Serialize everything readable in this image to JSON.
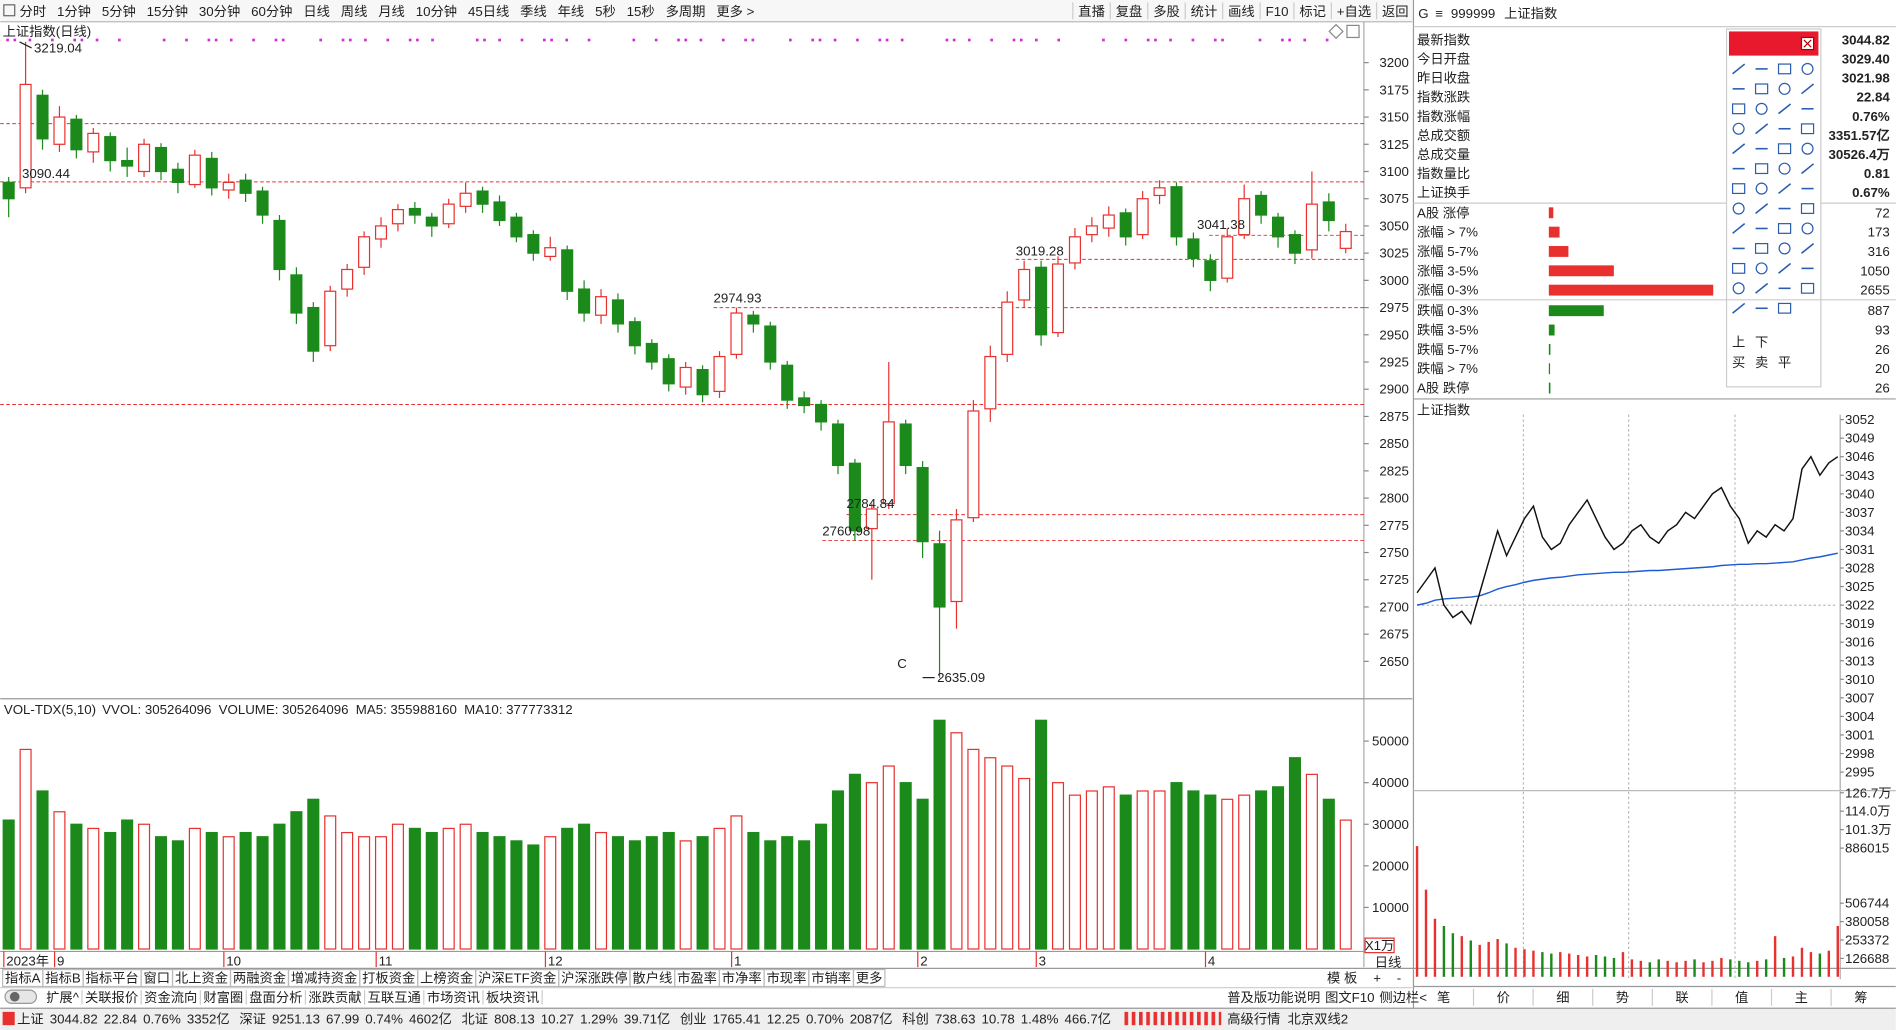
{
  "toolbar": {
    "periods": [
      "分时",
      "1分钟",
      "5分钟",
      "15分钟",
      "30分钟",
      "60分钟",
      "日线",
      "周线",
      "月线",
      "10分钟",
      "45日线",
      "季线",
      "年线",
      "5秒",
      "15秒",
      "多周期",
      "更多 >"
    ],
    "active": 6,
    "actions": [
      "直播",
      "复盘",
      "多股",
      "统计",
      "画线",
      "F10",
      "标记",
      "+自选",
      "返回"
    ]
  },
  "chart_data": {
    "type": "candlestick",
    "title": "上证指数(日线)",
    "categories": [
      "2023年",
      null,
      null,
      "9",
      null,
      null,
      null,
      null,
      null,
      null,
      null,
      null,
      null,
      "10",
      null,
      null,
      null,
      null,
      null,
      null,
      null,
      null,
      "11",
      null,
      null,
      null,
      null,
      null,
      null,
      null,
      null,
      null,
      "12",
      null,
      null,
      null,
      null,
      null,
      null,
      null,
      null,
      null,
      null,
      "1",
      null,
      null,
      null,
      null,
      null,
      null,
      null,
      null,
      null,
      null,
      "2",
      null,
      null,
      null,
      null,
      null,
      null,
      "3",
      null,
      null,
      null,
      null,
      null,
      null,
      null,
      null,
      null,
      "4",
      null,
      null,
      null,
      null,
      null,
      null,
      null,
      null
    ],
    "open": [
      3090,
      3085,
      3170,
      3125,
      3148,
      3118,
      3132,
      3110,
      3100,
      3122,
      3102,
      3088,
      3112,
      3083,
      3092,
      3082,
      3055,
      3005,
      2975,
      2940,
      2992,
      3012,
      3038,
      3052,
      3066,
      3058,
      3052,
      3068,
      3082,
      3072,
      3058,
      3042,
      3022,
      3028,
      2992,
      2968,
      2982,
      2962,
      2942,
      2928,
      2902,
      2918,
      2898,
      2932,
      2968,
      2958,
      2922,
      2892,
      2886,
      2868,
      2832,
      2772,
      2795,
      2868,
      2828,
      2758,
      2705,
      2782,
      2882,
      2932,
      2982,
      3012,
      2952,
      3016,
      3042,
      3048,
      3062,
      3042,
      3078,
      3086,
      3038,
      3018,
      3002,
      3042,
      3078,
      3058,
      3042,
      3028,
      3072,
      3029.4
    ],
    "high": [
      3095,
      3219.04,
      3175,
      3160,
      3152,
      3140,
      3136,
      3122,
      3130,
      3126,
      3108,
      3120,
      3118,
      3098,
      3098,
      3086,
      3060,
      3012,
      2980,
      2995,
      3015,
      3045,
      3058,
      3070,
      3072,
      3062,
      3075,
      3090,
      3086,
      3078,
      3062,
      3046,
      3040,
      3032,
      3000,
      2992,
      2988,
      2966,
      2946,
      2932,
      2925,
      2922,
      2935,
      2974.93,
      2972,
      2962,
      2926,
      2898,
      2890,
      2872,
      2836,
      2795,
      2925,
      2872,
      2834,
      2770,
      2790,
      2890,
      2940,
      2990,
      3018,
      3018,
      3022,
      3048,
      3058,
      3068,
      3066,
      3082,
      3092,
      3090,
      3044,
      3024,
      3048,
      3088,
      3082,
      3062,
      3046,
      3100,
      3080,
      3052
    ],
    "low": [
      3058,
      3080,
      3120,
      3118,
      3112,
      3108,
      3100,
      3095,
      3095,
      3092,
      3080,
      3085,
      3078,
      3075,
      3072,
      3052,
      3000,
      2960,
      2925,
      2935,
      2985,
      3005,
      3030,
      3045,
      3052,
      3040,
      3048,
      3062,
      3062,
      3050,
      3035,
      3018,
      3018,
      2982,
      2962,
      2960,
      2952,
      2932,
      2918,
      2898,
      2895,
      2888,
      2892,
      2928,
      2952,
      2918,
      2882,
      2878,
      2862,
      2822,
      2760.98,
      2725,
      2790,
      2822,
      2745,
      2635.09,
      2680,
      2778,
      2870,
      2925,
      2975,
      2940,
      2948,
      3010,
      3035,
      3040,
      3032,
      3038,
      3070,
      3032,
      3012,
      2990,
      2998,
      3038,
      3052,
      3030,
      3015,
      3020,
      3045,
      3025
    ],
    "close": [
      3075,
      3180,
      3130,
      3150,
      3120,
      3135,
      3110,
      3105,
      3125,
      3100,
      3090,
      3115,
      3085,
      3090,
      3080,
      3060,
      3010,
      2970,
      2935,
      2990,
      3010,
      3040,
      3050,
      3065,
      3060,
      3050,
      3070,
      3080,
      3070,
      3055,
      3040,
      3025,
      3030,
      2990,
      2970,
      2985,
      2960,
      2940,
      2925,
      2905,
      2920,
      2895,
      2930,
      2970,
      2960,
      2925,
      2890,
      2885,
      2870,
      2830,
      2770,
      2790,
      2870,
      2830,
      2760,
      2700,
      2780,
      2880,
      2930,
      2980,
      3010,
      2950,
      3015,
      3040,
      3050,
      3060,
      3040,
      3075,
      3085,
      3040,
      3020,
      3000,
      3040,
      3075,
      3060,
      3040,
      3025,
      3070,
      3055,
      3044.82
    ],
    "up_color": "#e8312f",
    "down_color": "#1b8a1b",
    "ylim": [
      2619,
      3222
    ],
    "yticks": [
      2650,
      2675,
      2700,
      2725,
      2750,
      2775,
      2800,
      2825,
      2850,
      2875,
      2900,
      2925,
      2950,
      2975,
      3000,
      3025,
      3050,
      3075,
      3100,
      3125,
      3150,
      3175,
      3200
    ],
    "level_lines": [
      3144,
      3090.44,
      3041.38,
      3019.28,
      2974.93,
      2886,
      2784.84,
      2760.98
    ],
    "price_labels": [
      3219.04,
      3090.44,
      3041.38,
      3019.28,
      2974.93,
      2784.84,
      2760.98,
      2635.09
    ],
    "wave_label": "C",
    "volume": {
      "indicator": "VOL-TDX(5,10)",
      "items": [
        {
          "name": "VVOL:",
          "value": 305264096,
          "color": "#222"
        },
        {
          "name": "VOLUME:",
          "value": 305264096,
          "color": "#1e6fd6"
        },
        {
          "name": "MA5:",
          "value": 355988160,
          "color": "#c1208f"
        },
        {
          "name": "MA10:",
          "value": 377773312,
          "color": "#8b1aa8"
        }
      ],
      "values": [
        31000,
        48000,
        38000,
        33000,
        30000,
        29000,
        28000,
        31000,
        30000,
        27000,
        26000,
        29000,
        28000,
        27000,
        28000,
        27000,
        30000,
        33000,
        36000,
        32000,
        28000,
        27000,
        27000,
        30000,
        29000,
        28000,
        29000,
        30000,
        28000,
        27000,
        26000,
        25000,
        27000,
        29000,
        30000,
        28000,
        27000,
        26000,
        27000,
        28000,
        26000,
        27000,
        29000,
        32000,
        28000,
        26000,
        27000,
        26000,
        30000,
        38000,
        42000,
        40000,
        44000,
        40000,
        36000,
        55000,
        52000,
        48000,
        46000,
        44000,
        41000,
        55000,
        40000,
        37000,
        38000,
        39000,
        37000,
        38000,
        38000,
        40000,
        38000,
        37000,
        36000,
        37000,
        38000,
        39000,
        46000,
        42000,
        36000,
        31000
      ],
      "ylim": [
        0,
        59600
      ],
      "yticks": [
        10000,
        20000,
        30000,
        40000,
        50000
      ],
      "unit": "X1万"
    }
  },
  "period_label": "日线",
  "side_controls": {
    "template": "模 板",
    "zoom": [
      "+",
      "-"
    ]
  },
  "quote": {
    "logo": "G",
    "menu": "≡",
    "code": "999999",
    "name": "上证指数",
    "rows": [
      {
        "label": "最新指数",
        "value": "3044.82",
        "color": "#e8312f"
      },
      {
        "label": "今日开盘",
        "value": "3029.40",
        "color": "#e8312f"
      },
      {
        "label": "昨日收盘",
        "value": "3021.98",
        "color": "#222"
      },
      {
        "label": "指数涨跌",
        "value": "22.84",
        "color": "#e8312f"
      },
      {
        "label": "指数涨幅",
        "value": "0.76%",
        "color": "#e8312f"
      },
      {
        "label": "总成交额",
        "value": "3351.57亿",
        "color": "#222"
      },
      {
        "label": "总成交量",
        "value": "30526.4万",
        "color": "#222"
      },
      {
        "label": "指数量比",
        "value": "0.81",
        "color": "#e8312f"
      },
      {
        "label": "上证换手",
        "value": "0.67%",
        "color": "#222"
      }
    ]
  },
  "tools": {
    "row1": [
      "上",
      "下"
    ],
    "row2": [
      "买",
      "卖",
      "平"
    ]
  },
  "breadth": {
    "rows": [
      {
        "label": "A股 涨停",
        "value": 72,
        "color": "#e8312f"
      },
      {
        "label": "涨幅 > 7%",
        "value": 173,
        "color": "#e8312f"
      },
      {
        "label": "涨幅 5-7%",
        "value": 316,
        "color": "#e8312f"
      },
      {
        "label": "涨幅 3-5%",
        "value": 1050,
        "color": "#e8312f"
      },
      {
        "label": "涨幅 0-3%",
        "value": 2655,
        "color": "#e8312f"
      },
      {
        "label": "跌幅 0-3%",
        "value": 887,
        "color": "#1b8a1b"
      },
      {
        "label": "跌幅 3-5%",
        "value": 93,
        "color": "#1b8a1b"
      },
      {
        "label": "跌幅 5-7%",
        "value": 26,
        "color": "#1b8a1b"
      },
      {
        "label": "跌幅 > 7%",
        "value": 20,
        "color": "#1b8a1b"
      },
      {
        "label": "A股 跌停",
        "value": 26,
        "color": "#1b8a1b"
      }
    ]
  },
  "intraday": {
    "title": "上证指数",
    "base": 3021.98,
    "price": [
      3024,
      3026,
      3028,
      3022,
      3020,
      3021,
      3019,
      3024,
      3029,
      3034,
      3030,
      3033,
      3036,
      3038,
      3033,
      3031,
      3032,
      3035,
      3037,
      3039,
      3036,
      3033,
      3031,
      3032,
      3034,
      3035,
      3033,
      3032,
      3034,
      3035,
      3037,
      3036,
      3038,
      3040,
      3041,
      3038,
      3036,
      3032,
      3034,
      3033,
      3035,
      3034,
      3036,
      3044,
      3046,
      3043,
      3045,
      3046
    ],
    "avg": [
      3022,
      3022.3,
      3022.8,
      3023,
      3023.1,
      3023.2,
      3023.3,
      3023.5,
      3024,
      3024.6,
      3025,
      3025.3,
      3025.7,
      3026,
      3026.2,
      3026.4,
      3026.5,
      3026.7,
      3026.9,
      3027,
      3027.1,
      3027.2,
      3027.3,
      3027.3,
      3027.4,
      3027.5,
      3027.6,
      3027.6,
      3027.7,
      3027.8,
      3027.9,
      3028,
      3028.1,
      3028.2,
      3028.4,
      3028.5,
      3028.6,
      3028.6,
      3028.7,
      3028.7,
      3028.8,
      3028.9,
      3029,
      3029.3,
      3029.6,
      3029.8,
      3030.1,
      3030.4
    ],
    "price_color": "#111",
    "avg_color": "#1e5bd6",
    "ylim": [
      2991.8,
      3052.8
    ],
    "yticks": [
      2995,
      2998,
      3001,
      3004,
      3007,
      3010,
      3013,
      3016,
      3019,
      3022,
      3025,
      3028,
      3031,
      3034,
      3037,
      3040,
      3043,
      3046,
      3049,
      3052
    ],
    "volume": [
      900000,
      600000,
      400000,
      350000,
      300000,
      280000,
      250000,
      220000,
      240000,
      260000,
      230000,
      200000,
      190000,
      180000,
      170000,
      160000,
      170000,
      160000,
      150000,
      140000,
      150000,
      140000,
      130000,
      170000,
      120000,
      110000,
      100000,
      120000,
      110000,
      100000,
      110000,
      120000,
      100000,
      110000,
      130000,
      120000,
      110000,
      100000,
      110000,
      120000,
      280000,
      130000,
      140000,
      200000,
      170000,
      160000,
      180000,
      350000
    ],
    "vol_ylim": [
      0,
      1290000
    ],
    "vol_yticks": [
      126688,
      253372,
      380058,
      506744,
      886015,
      {
        "value": 1013000,
        "label": "101.3万"
      },
      {
        "value": 1140000,
        "label": "114.0万"
      },
      {
        "value": 1267000,
        "label": "126.7万"
      }
    ],
    "tabs": [
      "笔",
      "价",
      "细",
      "势",
      "联",
      "值",
      "主",
      "筹"
    ],
    "active": 3
  },
  "bottom": {
    "row1": [
      "指标A",
      "指标B",
      "指标平台",
      "窗口",
      "北上资金",
      "两融资金",
      "增减持资金",
      "打板资金",
      "上榜资金",
      "沪深ETF资金",
      "沪深涨跌停",
      "散户线",
      "市盈率",
      "市净率",
      "市现率",
      "市销率",
      "更多"
    ],
    "row1_red": [
      16
    ],
    "row2": [
      "扩展^",
      "关联报价",
      "资金流向",
      "财富圈",
      "盘面分析",
      "涨跌贡献",
      "互联互通",
      "市场资讯",
      "板块资讯"
    ],
    "row2_red": [
      3,
      5,
      6
    ],
    "row2_right": [
      "普及版功能说明",
      "图文F10",
      "侧边栏<"
    ]
  },
  "status": {
    "indices": [
      {
        "name": "上证",
        "price": "3044.82",
        "change": "22.84",
        "pct": "0.76%",
        "amount": "3352亿"
      },
      {
        "name": "深证",
        "price": "9251.13",
        "change": "67.99",
        "pct": "0.74%",
        "amount": "4602亿"
      },
      {
        "name": "北证",
        "price": "808.13",
        "change": "10.27",
        "pct": "1.29%",
        "amount": "39.71亿"
      },
      {
        "name": "创业",
        "price": "1765.41",
        "change": "12.25",
        "pct": "0.70%",
        "amount": "2087亿"
      },
      {
        "name": "科创",
        "price": "738.63",
        "change": "10.78",
        "pct": "1.48%",
        "amount": "466.7亿"
      }
    ],
    "right": [
      "高级行情",
      "北京双线2"
    ]
  }
}
